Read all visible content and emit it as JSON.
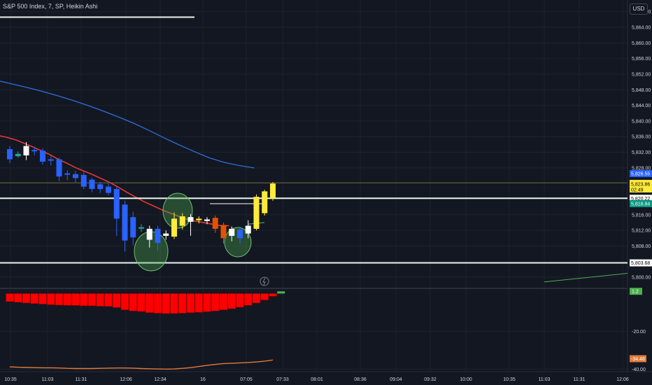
{
  "header": {
    "title": "S&P 500 Index, 7, SP, Heikin Ashi"
  },
  "currency_button": {
    "label": "USD"
  },
  "colors": {
    "background": "#131722",
    "grid": "#1e222d",
    "axis_text": "#d1d4dc",
    "bull_body": "#ffffff",
    "bear_body": "#2962ff",
    "bull_highlight": "#ffeb3b",
    "bear_highlight": "#e65100",
    "ma_fast": "#e53935",
    "ma_slow": "#2f6fd6",
    "level_line": "#e8f5e9",
    "circle_fill": "#4caf50",
    "histogram": "#ff0000",
    "histogram_last": "#4caf50",
    "osc_line": "#e07b39"
  },
  "chart_data": [
    {
      "type": "candlestick",
      "style": "Heikin Ashi",
      "title": "S&P 500 Index, 7, SP, Heikin Ashi",
      "x_ticks": [
        "10:35",
        "11:03",
        "11:31",
        "12:06",
        "12:34",
        "16",
        "07:05",
        "07:33",
        "08:01",
        "08:36",
        "09:04",
        "09:32",
        "10:00",
        "10:35",
        "11:03",
        "11:31",
        "12:06"
      ],
      "y_ticks": [
        5800,
        5804,
        5808,
        5812,
        5816,
        5820,
        5824,
        5828,
        5832,
        5836,
        5840,
        5844,
        5848,
        5852,
        5856,
        5860,
        5864,
        5868
      ],
      "y_tick_labels": [
        "5,800.00",
        "5,804.00",
        "5,808.00",
        "5,812.00",
        "5,816.00",
        "5,820.00",
        "5,824.00",
        "5,828.00",
        "5,832.00",
        "5,836.00",
        "5,840.00",
        "5,844.00",
        "5,848.00",
        "5,852.00",
        "5,856.00",
        "5,860.00",
        "5,864.00",
        "5,868.00"
      ],
      "ylim": [
        5797.5,
        5871
      ],
      "candles": [
        {
          "o": 5832.8,
          "c": 5830.2,
          "h": 5833.6,
          "l": 5829.2,
          "color": "bear"
        },
        {
          "o": 5831.0,
          "c": 5831.6,
          "h": 5832.2,
          "l": 5830.6,
          "color": "accent"
        },
        {
          "o": 5833.6,
          "c": 5831.2,
          "h": 5834.6,
          "l": 5830.0,
          "color": "bull"
        },
        {
          "o": 5832.6,
          "c": 5832.4,
          "h": 5833.4,
          "l": 5831.2,
          "color": "bear"
        },
        {
          "o": 5832.4,
          "c": 5829.6,
          "h": 5833.0,
          "l": 5828.8,
          "color": "bear"
        },
        {
          "o": 5830.2,
          "c": 5830.0,
          "h": 5831.0,
          "l": 5828.6,
          "color": "bear"
        },
        {
          "o": 5830.2,
          "c": 5825.8,
          "h": 5830.6,
          "l": 5824.6,
          "color": "bear"
        },
        {
          "o": 5826.6,
          "c": 5826.4,
          "h": 5827.4,
          "l": 5824.8,
          "color": "bear"
        },
        {
          "o": 5826.4,
          "c": 5825.4,
          "h": 5827.2,
          "l": 5824.2,
          "color": "bear"
        },
        {
          "o": 5826.2,
          "c": 5823.2,
          "h": 5827.0,
          "l": 5822.6,
          "color": "bear"
        },
        {
          "o": 5825.0,
          "c": 5822.6,
          "h": 5825.4,
          "l": 5821.8,
          "color": "bear"
        },
        {
          "o": 5823.8,
          "c": 5822.6,
          "h": 5824.4,
          "l": 5821.6,
          "color": "bear"
        },
        {
          "o": 5823.2,
          "c": 5821.6,
          "h": 5824.0,
          "l": 5821.0,
          "color": "bear"
        },
        {
          "o": 5822.6,
          "c": 5815.0,
          "h": 5823.2,
          "l": 5810.6,
          "color": "bear"
        },
        {
          "o": 5818.6,
          "c": 5809.4,
          "h": 5819.6,
          "l": 5806.6,
          "color": "bear"
        },
        {
          "o": 5815.4,
          "c": 5810.2,
          "h": 5816.8,
          "l": 5808.2,
          "color": "bear"
        },
        {
          "o": 5812.6,
          "c": 5812.8,
          "h": 5813.6,
          "l": 5811.6,
          "color": "accent"
        },
        {
          "o": 5809.6,
          "c": 5812.4,
          "h": 5813.2,
          "l": 5807.6,
          "color": "bull"
        },
        {
          "o": 5812.4,
          "c": 5808.8,
          "h": 5813.2,
          "l": 5806.8,
          "color": "bear"
        },
        {
          "o": 5810.6,
          "c": 5811.2,
          "h": 5812.0,
          "l": 5809.6,
          "color": "bull"
        },
        {
          "o": 5810.4,
          "c": 5815.0,
          "h": 5816.6,
          "l": 5809.8,
          "color": "highlight"
        },
        {
          "o": 5813.2,
          "c": 5815.6,
          "h": 5816.4,
          "l": 5812.2,
          "color": "highlight"
        },
        {
          "o": 5814.2,
          "c": 5815.4,
          "h": 5816.2,
          "l": 5810.6,
          "color": "bull"
        },
        {
          "o": 5815.0,
          "c": 5814.6,
          "h": 5815.6,
          "l": 5813.8,
          "color": "highlight"
        },
        {
          "o": 5814.8,
          "c": 5814.4,
          "h": 5815.4,
          "l": 5813.6,
          "color": "bull"
        },
        {
          "o": 5815.2,
          "c": 5812.4,
          "h": 5815.8,
          "l": 5811.4,
          "color": "bear_highlight"
        },
        {
          "o": 5813.4,
          "c": 5810.0,
          "h": 5814.0,
          "l": 5808.6,
          "color": "bear_highlight"
        },
        {
          "o": 5810.6,
          "c": 5812.4,
          "h": 5813.0,
          "l": 5809.2,
          "color": "bull"
        },
        {
          "o": 5810.0,
          "c": 5812.2,
          "h": 5813.0,
          "l": 5808.6,
          "color": "bear"
        },
        {
          "o": 5811.2,
          "c": 5813.2,
          "h": 5814.6,
          "l": 5810.0,
          "color": "bull"
        },
        {
          "o": 5812.4,
          "c": 5820.6,
          "h": 5821.2,
          "l": 5812.0,
          "color": "highlight"
        },
        {
          "o": 5816.4,
          "c": 5822.0,
          "h": 5822.4,
          "l": 5815.8,
          "color": "highlight"
        },
        {
          "o": 5820.2,
          "c": 5824.0,
          "h": 5824.4,
          "l": 5819.6,
          "color": "highlight"
        }
      ],
      "ma_fast": [
        5836.3,
        5835.8,
        5835.2,
        5834.3,
        5833.4,
        5832.4,
        5831.4,
        5830.2,
        5829.2,
        5828.1,
        5827.2,
        5826.3,
        5825.3,
        5824.3,
        5823.1,
        5821.8,
        5820.6,
        5819.4,
        5818.4,
        5817.4,
        5816.5,
        5815.7,
        5814.9,
        5814.4,
        5814.0,
        5813.6,
        5813.2,
        5813.2
      ],
      "ma_slow": [
        5850.3,
        5849.4,
        5848.5,
        5847.5,
        5846.4,
        5845.2,
        5843.9,
        5842.5,
        5841.0,
        5839.4,
        5837.6,
        5835.7,
        5833.9,
        5832.2,
        5830.6,
        5829.4,
        5828.6,
        5828.0
      ],
      "ma_fast_tail": [
        5813.6,
        5814.0
      ],
      "horizontal_levels": [
        {
          "price": 5866.6,
          "x_end": "mid"
        },
        {
          "price": 5820.22,
          "label": "5,820.22"
        },
        {
          "price": 5803.68,
          "label": "5,803.68"
        }
      ],
      "thin_level": 5824.0,
      "price_labels": [
        {
          "price": 5826.55,
          "label": "5,826.55",
          "bg": "#2962ff",
          "fg": "#ffffff"
        },
        {
          "price": 5823.86,
          "label": "5,823.86",
          "sub": "02:49",
          "bg": "#ffeb3b",
          "fg": "#000000"
        },
        {
          "price": 5820.22,
          "label": "5,820.22",
          "bg": "#ffffff",
          "fg": "#000000"
        },
        {
          "price": 5818.84,
          "label": "5,818.84",
          "bg": "#089981",
          "fg": "#ffffff"
        },
        {
          "price": 5803.68,
          "label": "5,803.68",
          "bg": "#ffffff",
          "fg": "#000000"
        }
      ],
      "future_projection": [
        [
          5798.8,
          5801.0
        ]
      ],
      "highlight_circles": [
        {
          "center_index": 18
        },
        {
          "center_index": 22
        },
        {
          "center_index": 29
        }
      ]
    },
    {
      "type": "bar",
      "name": "oscillator",
      "values": [
        -4.2,
        -4.6,
        -5.0,
        -5.3,
        -5.6,
        -5.9,
        -6.1,
        -6.2,
        -6.3,
        -6.5,
        -6.5,
        -6.7,
        -6.8,
        -7.4,
        -8.6,
        -9.2,
        -9.5,
        -10.1,
        -10.4,
        -10.6,
        -10.5,
        -10.4,
        -10.1,
        -9.9,
        -9.6,
        -9.2,
        -8.6,
        -8.0,
        -7.2,
        -6.2,
        -5.0,
        -3.4,
        -1.4
      ],
      "last_value": 1.2,
      "last_label": "1.2",
      "line_values": [
        -38.8,
        -39.0,
        -39.1,
        -39.2,
        -39.3,
        -39.3,
        -39.4,
        -39.6,
        -39.7,
        -39.7,
        -39.7,
        -39.6,
        -39.5,
        -39.4,
        -39.4,
        -39.5,
        -39.7,
        -39.8,
        -39.9,
        -40.0,
        -39.9,
        -39.6,
        -39.2,
        -38.6,
        -38.0,
        -37.5,
        -37.1,
        -36.9,
        -36.7,
        -36.5,
        -36.2,
        -35.8,
        -35.2
      ],
      "line_last_label": "-34.48",
      "y_ticks": [
        -20,
        -40
      ],
      "y_tick_labels": [
        "-20.00",
        "-40.00"
      ],
      "ylim": [
        -41,
        2
      ]
    }
  ]
}
